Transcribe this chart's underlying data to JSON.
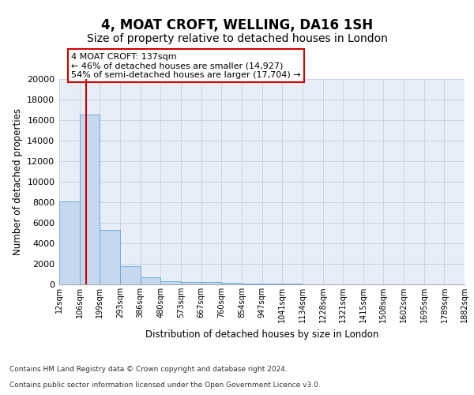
{
  "title": "4, MOAT CROFT, WELLING, DA16 1SH",
  "subtitle": "Size of property relative to detached houses in London",
  "xlabel": "Distribution of detached houses by size in London",
  "ylabel": "Number of detached properties",
  "bin_labels": [
    "12sqm",
    "106sqm",
    "199sqm",
    "293sqm",
    "386sqm",
    "480sqm",
    "573sqm",
    "667sqm",
    "760sqm",
    "854sqm",
    "947sqm",
    "1041sqm",
    "1134sqm",
    "1228sqm",
    "1321sqm",
    "1415sqm",
    "1508sqm",
    "1602sqm",
    "1695sqm",
    "1789sqm",
    "1882sqm"
  ],
  "bin_edges": [
    12,
    106,
    199,
    293,
    386,
    480,
    573,
    667,
    760,
    854,
    947,
    1041,
    1134,
    1228,
    1321,
    1415,
    1508,
    1602,
    1695,
    1789,
    1882
  ],
  "bar_heights": [
    8100,
    16500,
    5300,
    1750,
    700,
    300,
    230,
    200,
    175,
    100,
    60,
    40,
    30,
    20,
    15,
    12,
    10,
    8,
    6,
    5
  ],
  "bar_color": "#c5d8f0",
  "bar_edge_color": "#6baed6",
  "property_size": 137,
  "red_line_color": "#cc0000",
  "annotation_text": "4 MOAT CROFT: 137sqm\n← 46% of detached houses are smaller (14,927)\n54% of semi-detached houses are larger (17,704) →",
  "annotation_box_color": "#ffffff",
  "annotation_box_edge": "#cc0000",
  "ylim": [
    0,
    20000
  ],
  "yticks": [
    0,
    2000,
    4000,
    6000,
    8000,
    10000,
    12000,
    14000,
    16000,
    18000,
    20000
  ],
  "grid_color": "#c8d4e8",
  "background_color": "#e8eef8",
  "footer_line1": "Contains HM Land Registry data © Crown copyright and database right 2024.",
  "footer_line2": "Contains public sector information licensed under the Open Government Licence v3.0.",
  "title_fontsize": 12,
  "subtitle_fontsize": 10
}
